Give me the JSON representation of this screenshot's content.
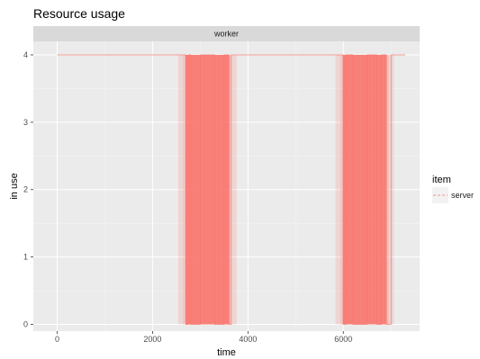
{
  "chart_data": {
    "type": "line",
    "title": "Resource usage",
    "facet": "worker",
    "xlabel": "time",
    "ylabel": "in use",
    "xlim": [
      -500,
      7600
    ],
    "ylim": [
      -0.1,
      4.2
    ],
    "x_ticks": [
      0,
      2000,
      4000,
      6000
    ],
    "x_tick_labels": [
      "0",
      "2000",
      "4000",
      "6000"
    ],
    "y_ticks": [
      0,
      1,
      2,
      3,
      4
    ],
    "y_tick_labels": [
      "0",
      "1",
      "2",
      "3",
      "4"
    ],
    "grid": true,
    "legend": {
      "title": "item",
      "position": "right",
      "entries": [
        "server"
      ]
    },
    "series": [
      {
        "name": "server",
        "color": "#F8766D",
        "linetype": "dashed",
        "x": [
          0,
          2650,
          2700,
          2750,
          2800,
          3000,
          3300,
          3500,
          3600,
          3650,
          5900,
          6000,
          6050,
          6200,
          6500,
          6700,
          6800,
          6900,
          7000,
          7300
        ],
        "y": [
          4,
          4,
          0,
          4,
          0,
          4,
          0,
          4,
          0,
          4,
          4,
          0,
          4,
          0,
          4,
          0,
          4,
          0,
          4,
          4
        ]
      }
    ],
    "dense_bands": [
      {
        "x_start": 2650,
        "x_end": 3650,
        "y_low": 0,
        "y_high": 4
      },
      {
        "x_start": 5950,
        "x_end": 6950,
        "y_low": 0,
        "y_high": 4
      }
    ]
  }
}
